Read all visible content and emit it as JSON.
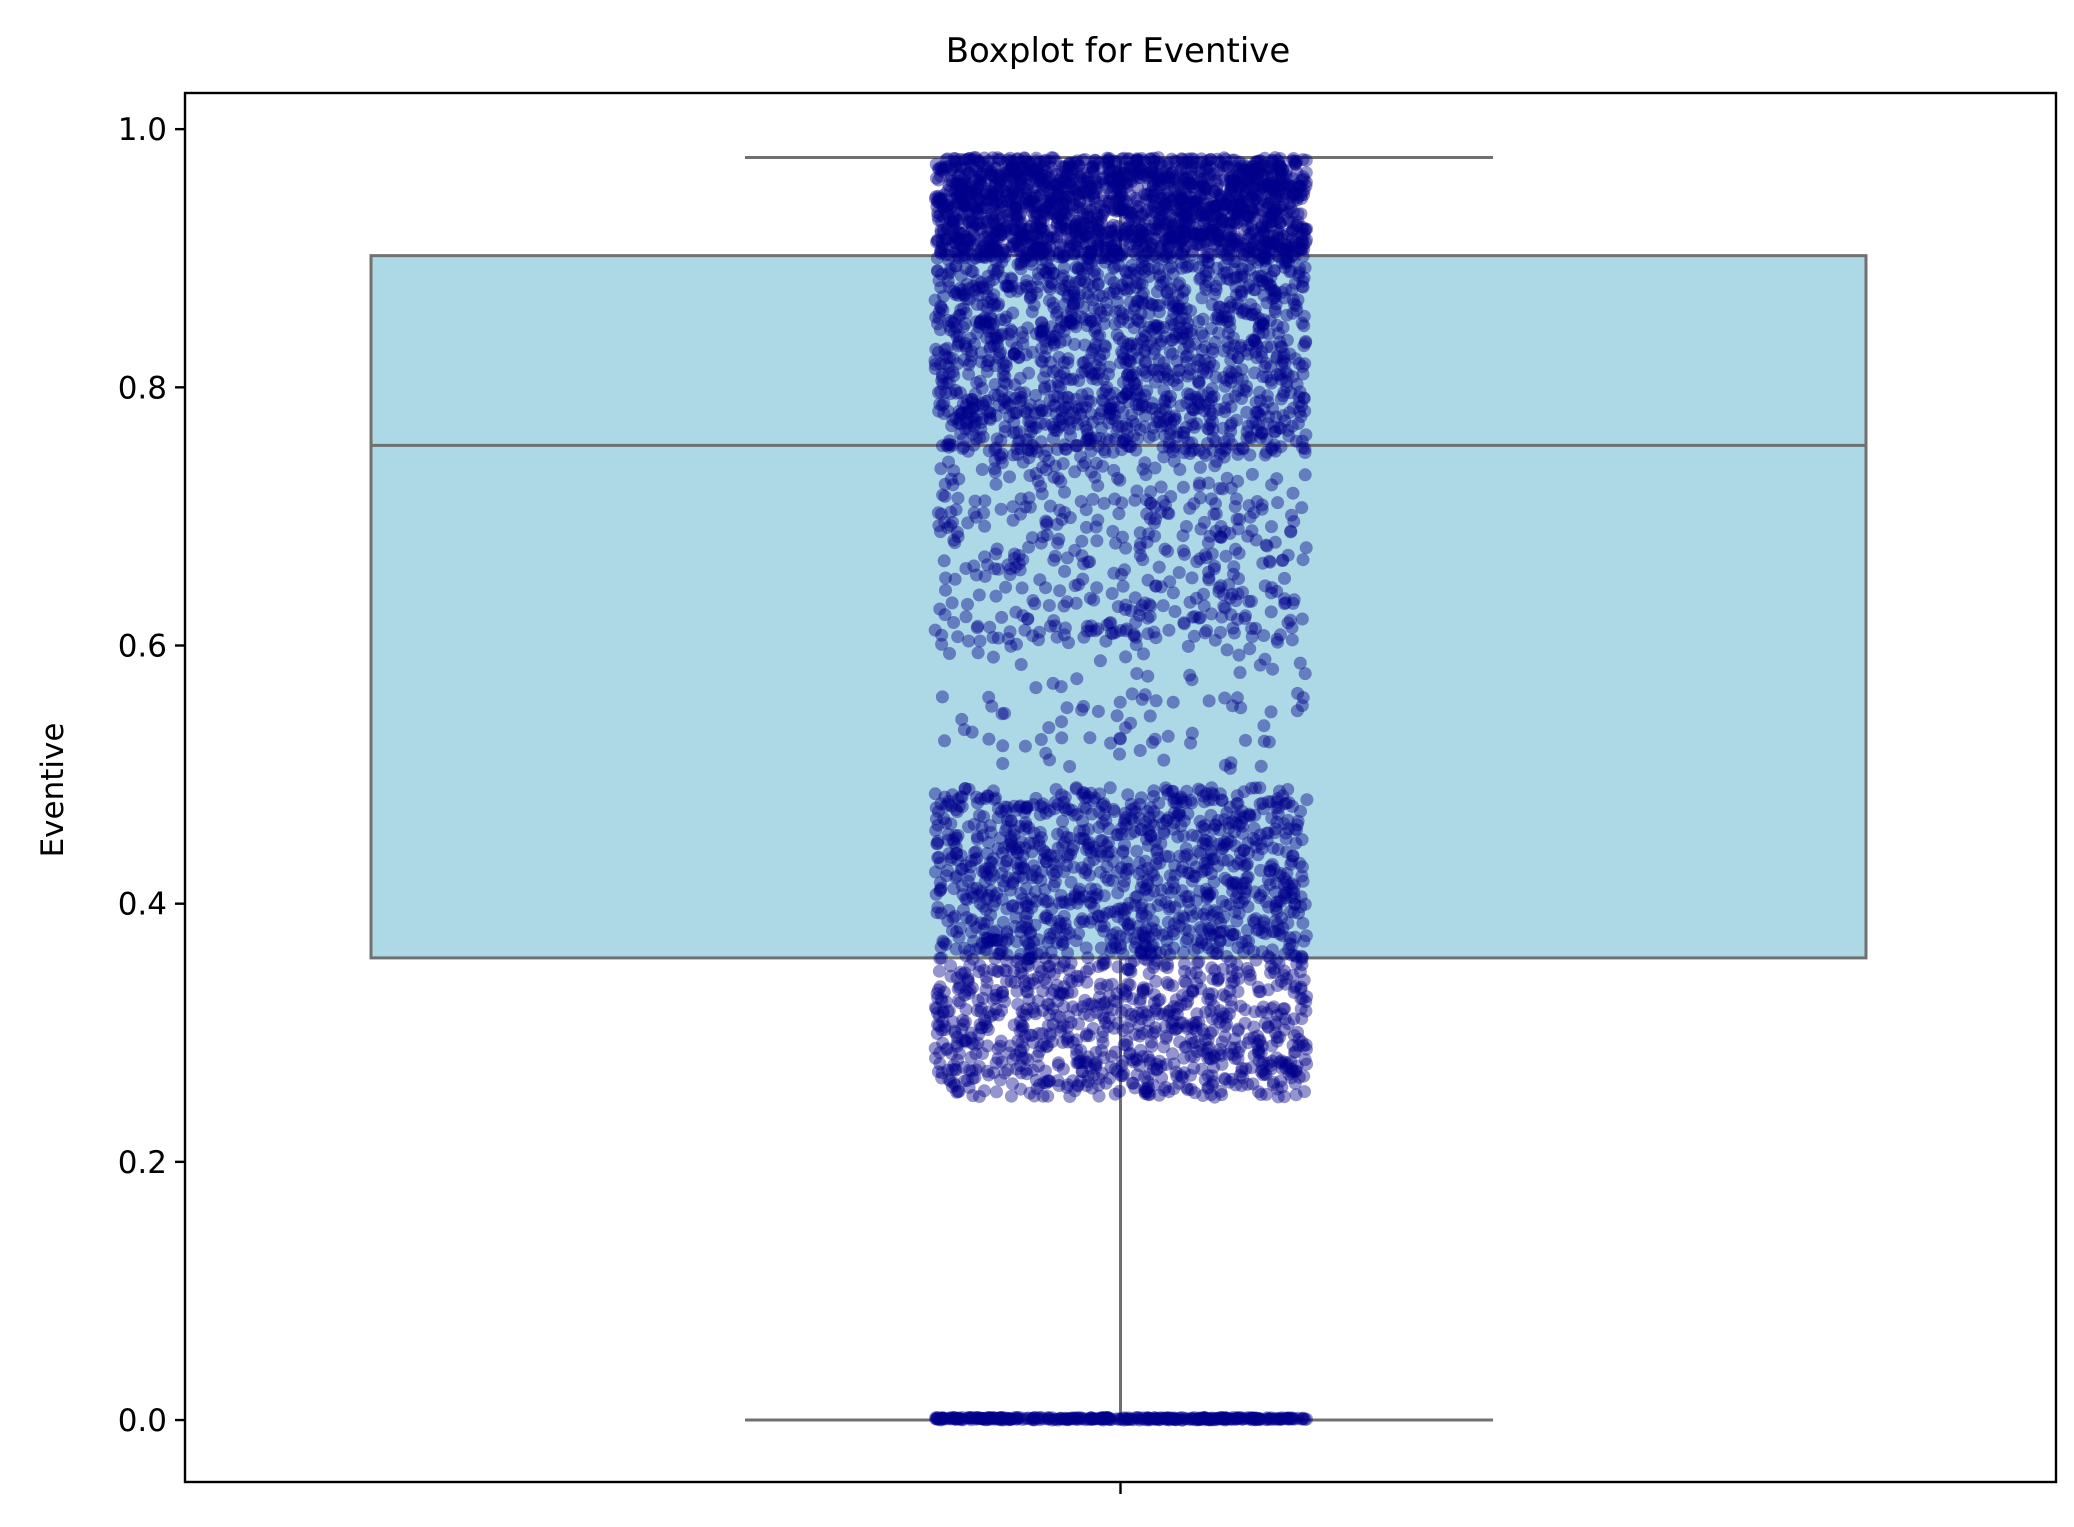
{
  "chart_data": {
    "type": "boxplot",
    "title": "Boxplot for Eventive",
    "xlabel": "",
    "ylabel": "Eventive",
    "ylim": [
      -0.048,
      1.028
    ],
    "yticks": [
      0.0,
      0.2,
      0.4,
      0.6,
      0.8,
      1.0
    ],
    "ytick_labels": [
      "0.0",
      "0.2",
      "0.4",
      "0.6",
      "0.8",
      "1.0"
    ],
    "xtick_labels": [
      ""
    ],
    "grid": false,
    "legend": "none",
    "box": {
      "whisker_low": 0.0,
      "q1": 0.358,
      "median": 0.755,
      "q3": 0.902,
      "whisker_high": 0.978
    },
    "strip_points": {
      "description": "jittered individual observations",
      "approx_count": 6000,
      "segments": [
        {
          "ymin": 0.0,
          "ymax": 0.002,
          "share": 0.06
        },
        {
          "ymin": 0.25,
          "ymax": 0.36,
          "share": 0.14
        },
        {
          "ymin": 0.36,
          "ymax": 0.49,
          "share": 0.17
        },
        {
          "ymin": 0.5,
          "ymax": 0.6,
          "share": 0.015
        },
        {
          "ymin": 0.6,
          "ymax": 0.75,
          "share": 0.075
        },
        {
          "ymin": 0.75,
          "ymax": 0.9,
          "share": 0.22
        },
        {
          "ymin": 0.9,
          "ymax": 0.978,
          "share": 0.32
        }
      ]
    },
    "colors": {
      "box_fill": "#add8e6",
      "box_edge": "#707070",
      "points": "#00008b",
      "axes": "#000000"
    }
  }
}
